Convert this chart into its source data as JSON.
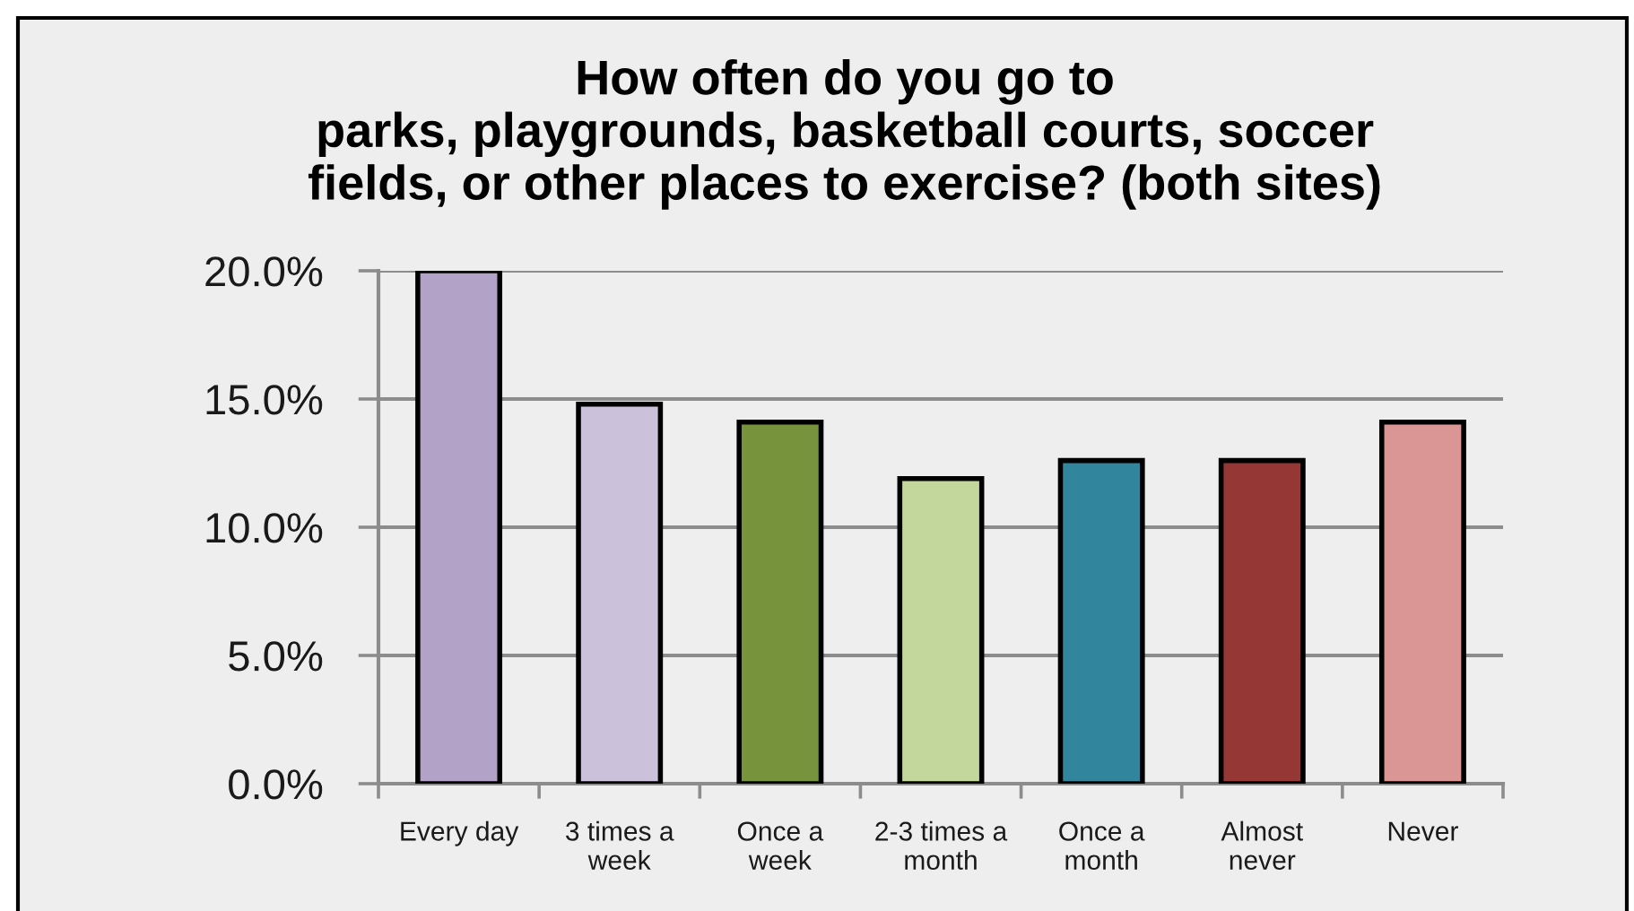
{
  "chart_data": {
    "type": "bar",
    "title": "How often do you go to\nparks, playgrounds, basketball courts, soccer\nfields, or other places to exercise? (both sites)",
    "categories": [
      "Every day",
      "3 times a\nweek",
      "Once a\nweek",
      "2-3 times a\nmonth",
      "Once a\nmonth",
      "Almost\nnever",
      "Never"
    ],
    "values": [
      20.0,
      14.8,
      14.1,
      11.9,
      12.6,
      12.6,
      14.1
    ],
    "colors": [
      "#b3a2c7",
      "#ccc1da",
      "#77933c",
      "#c3d69b",
      "#31859c",
      "#953735",
      "#d99694"
    ],
    "ylim": [
      0,
      20
    ],
    "yticks": [
      {
        "value": 0,
        "label": "0.0%"
      },
      {
        "value": 5,
        "label": "5.0%"
      },
      {
        "value": 10,
        "label": "10.0%"
      },
      {
        "value": 15,
        "label": "15.0%"
      },
      {
        "value": 20,
        "label": "20.0%"
      }
    ],
    "grid": "y"
  }
}
